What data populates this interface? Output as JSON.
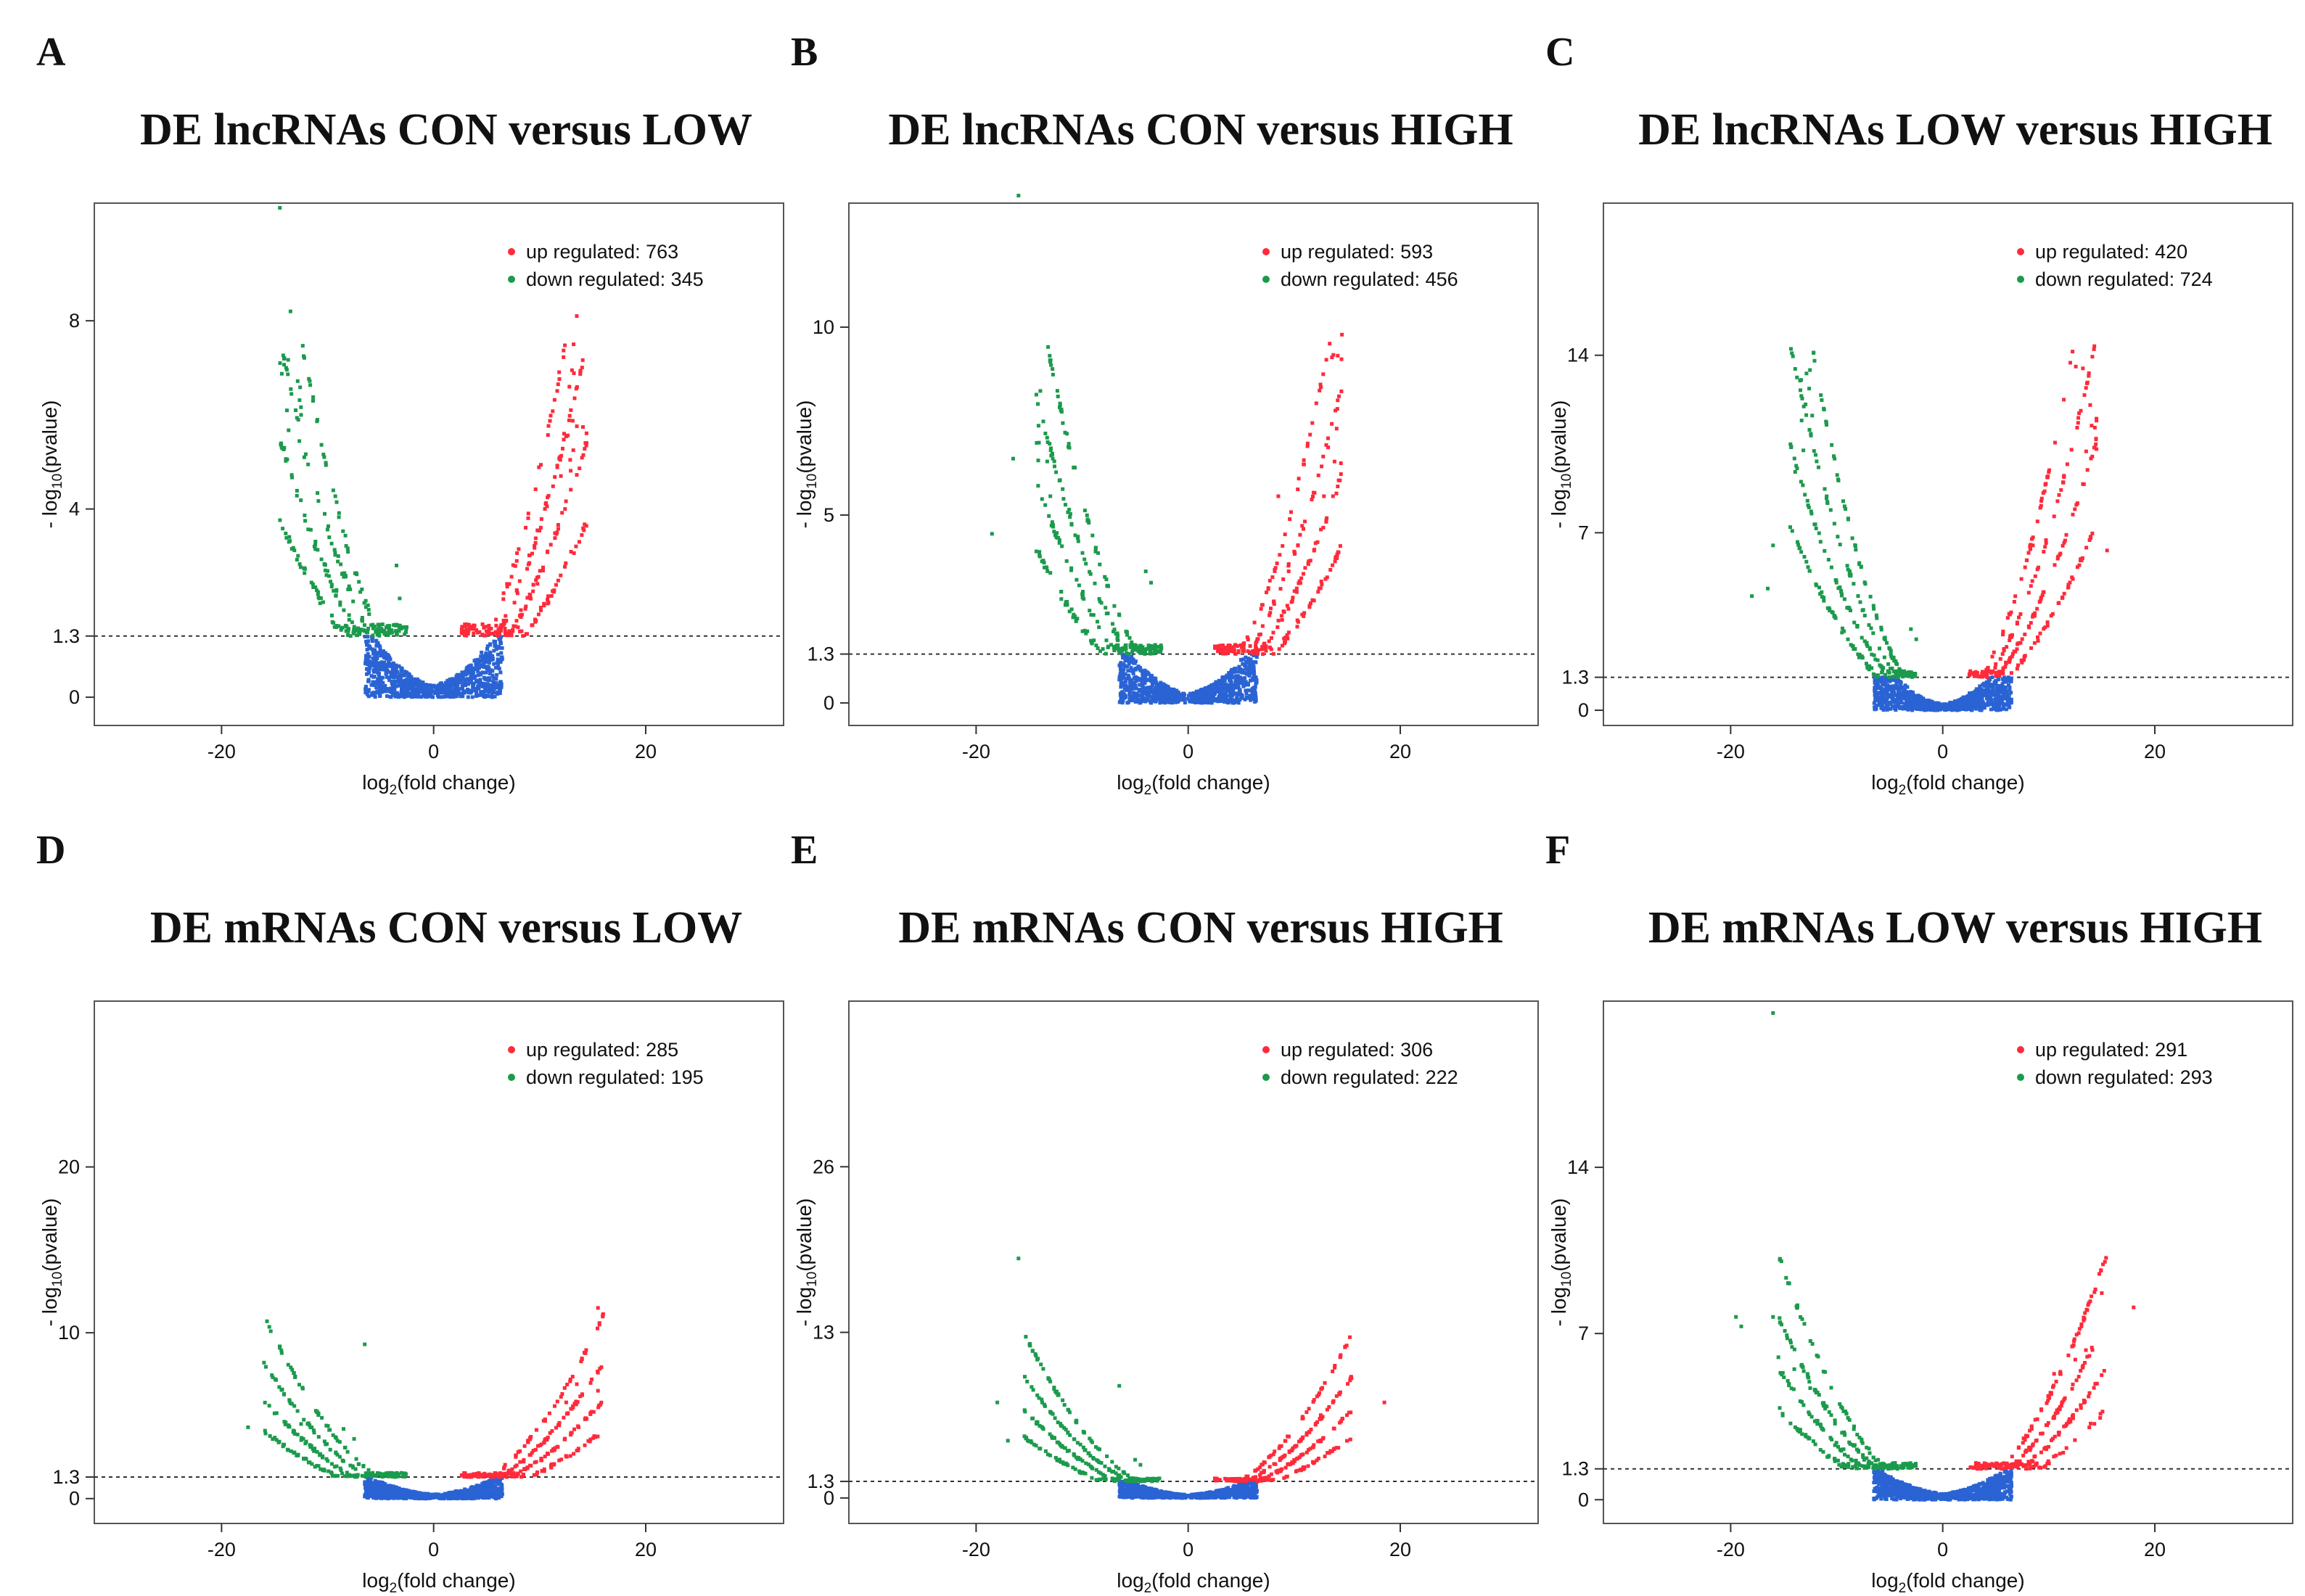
{
  "chart_data": [
    {
      "type": "scatter",
      "panel": "A",
      "title": "DE lncRNAs CON versus LOW",
      "xlabel": "log2(fold change)",
      "ylabel": "- log10(pvalue)",
      "xlim": [
        -32,
        33
      ],
      "ylim": [
        -0.6,
        10.5
      ],
      "xticks": [
        -20,
        0,
        20
      ],
      "yticks": [
        0,
        1.3,
        4,
        8
      ],
      "threshold": 1.3,
      "legend": {
        "position": "top-right",
        "entries": [
          {
            "label": "up regulated: 763",
            "color": "#ff2a3a"
          },
          {
            "label": "down regulated: 345",
            "color": "#1c9a4c"
          }
        ]
      },
      "up_count": 763,
      "down_count": 345,
      "curve_k": 0.018,
      "max_abs_x": 14.5,
      "outliers": [
        [
          -14.5,
          10.4
        ],
        [
          -13.5,
          8.2
        ],
        [
          -12.5,
          6.0
        ],
        [
          -12.2,
          5.1
        ],
        [
          -3.5,
          2.8
        ],
        [
          -3.2,
          2.1
        ],
        [
          13.5,
          8.1
        ],
        [
          13.2,
          7.5
        ],
        [
          12.8,
          6.6
        ],
        [
          12.3,
          5.6
        ],
        [
          12.0,
          4.7
        ]
      ]
    },
    {
      "type": "scatter",
      "panel": "B",
      "title": "DE lncRNAs CON versus HIGH",
      "xlabel": "log2(fold change)",
      "ylabel": "- log10(pvalue)",
      "xlim": [
        -32,
        33
      ],
      "ylim": [
        -0.6,
        13.3
      ],
      "xticks": [
        -20,
        0,
        20
      ],
      "yticks": [
        0,
        1.3,
        5,
        10
      ],
      "threshold": 1.3,
      "legend": {
        "position": "top-right",
        "entries": [
          {
            "label": "up regulated: 593",
            "color": "#ff2a3a"
          },
          {
            "label": "down regulated: 456",
            "color": "#1c9a4c"
          }
        ]
      },
      "up_count": 593,
      "down_count": 456,
      "curve_k": 0.02,
      "max_abs_x": 14.5,
      "outliers": [
        [
          -16,
          13.5
        ],
        [
          -16.5,
          6.5
        ],
        [
          -18.5,
          4.5
        ],
        [
          -13,
          5.5
        ],
        [
          -4,
          3.5
        ],
        [
          -3.5,
          3.2
        ],
        [
          14.5,
          9.8
        ],
        [
          14,
          7.3
        ],
        [
          13.2,
          6.8
        ],
        [
          12.8,
          5.5
        ],
        [
          8.5,
          5.5
        ]
      ]
    },
    {
      "type": "scatter",
      "panel": "C",
      "title": "DE lncRNAs LOW versus HIGH",
      "xlabel": "log2(fold change)",
      "ylabel": "- log10(pvalue)",
      "xlim": [
        -32,
        33
      ],
      "ylim": [
        -0.6,
        20
      ],
      "xticks": [
        -20,
        0,
        20
      ],
      "yticks": [
        0,
        1.3,
        7,
        14
      ],
      "threshold": 1.3,
      "legend": {
        "position": "top-right",
        "entries": [
          {
            "label": "up regulated: 420",
            "color": "#ff2a3a"
          },
          {
            "label": "down regulated: 724",
            "color": "#1c9a4c"
          }
        ]
      },
      "up_count": 420,
      "down_count": 724,
      "curve_k": 0.035,
      "max_abs_x": 14.5,
      "outliers": [
        [
          14.5,
          11.5
        ],
        [
          14.5,
          10.3
        ],
        [
          15.5,
          6.3
        ],
        [
          8.5,
          6.5
        ],
        [
          -13,
          8.5
        ],
        [
          -16,
          6.5
        ],
        [
          -18,
          4.5
        ],
        [
          -16.5,
          4.8
        ],
        [
          -3,
          3.2
        ],
        [
          -2.5,
          2.8
        ]
      ]
    },
    {
      "type": "scatter",
      "panel": "D",
      "title": "DE mRNAs CON versus LOW",
      "xlabel": "log2(fold change)",
      "ylabel": "- log10(pvalue)",
      "xlim": [
        -32,
        33
      ],
      "ylim": [
        -1.5,
        30
      ],
      "xticks": [
        -20,
        0,
        20
      ],
      "yticks": [
        0,
        1.3,
        10,
        20
      ],
      "threshold": 1.3,
      "legend": {
        "position": "top-right",
        "entries": [
          {
            "label": "up regulated: 285",
            "color": "#ff2a3a"
          },
          {
            "label": "down regulated: 195",
            "color": "#1c9a4c"
          }
        ]
      },
      "up_count": 285,
      "down_count": 195,
      "curve_k": 0.016,
      "max_abs_x": 16,
      "outliers": [
        [
          -6.5,
          9.3
        ],
        [
          -17.5,
          4.3
        ],
        [
          -15.5,
          5.6
        ],
        [
          -12.5,
          4.5
        ],
        [
          -8.5,
          4.2
        ],
        [
          -7.5,
          3.6
        ],
        [
          15.5,
          11.5
        ],
        [
          14,
          8.4
        ],
        [
          13.5,
          6.9
        ],
        [
          15.5,
          6.5
        ],
        [
          12.5,
          5.8
        ]
      ]
    },
    {
      "type": "scatter",
      "panel": "E",
      "title": "DE mRNAs CON versus HIGH",
      "xlabel": "log2(fold change)",
      "ylabel": "- log10(pvalue)",
      "xlim": [
        -32,
        33
      ],
      "ylim": [
        -2,
        39
      ],
      "xticks": [
        -20,
        0,
        20
      ],
      "yticks": [
        0,
        1.3,
        13,
        26
      ],
      "threshold": 1.3,
      "legend": {
        "position": "top-right",
        "entries": [
          {
            "label": "up regulated: 306",
            "color": "#ff2a3a"
          },
          {
            "label": "down regulated: 222",
            "color": "#1c9a4c"
          }
        ]
      },
      "up_count": 306,
      "down_count": 222,
      "curve_k": 0.02,
      "max_abs_x": 15.5,
      "outliers": [
        [
          -16,
          18.8
        ],
        [
          -6.5,
          8.8
        ],
        [
          -18,
          7.5
        ],
        [
          -13.5,
          7.2
        ],
        [
          -17,
          4.5
        ],
        [
          18.5,
          7.5
        ],
        [
          14,
          8
        ],
        [
          12.5,
          6.5
        ],
        [
          -5,
          3
        ],
        [
          -4.5,
          2.6
        ]
      ]
    },
    {
      "type": "scatter",
      "panel": "F",
      "title": "DE mRNAs LOW versus HIGH",
      "xlabel": "log2(fold change)",
      "ylabel": "- log10(pvalue)",
      "xlim": [
        -32,
        33
      ],
      "ylim": [
        -1,
        21
      ],
      "xticks": [
        -20,
        0,
        20
      ],
      "yticks": [
        0,
        1.3,
        7,
        14
      ],
      "threshold": 1.3,
      "legend": {
        "position": "top-right",
        "entries": [
          {
            "label": "up regulated: 291",
            "color": "#ff2a3a"
          },
          {
            "label": "down regulated: 293",
            "color": "#1c9a4c"
          }
        ]
      },
      "up_count": 291,
      "down_count": 293,
      "curve_k": 0.016,
      "max_abs_x": 15.5,
      "outliers": [
        [
          -16,
          20.5
        ],
        [
          -19.5,
          7.7
        ],
        [
          -19,
          7.3
        ],
        [
          -16,
          7.7
        ],
        [
          -15.5,
          6
        ],
        [
          -14,
          5.5
        ],
        [
          -12.5,
          4.7
        ],
        [
          15,
          8.7
        ],
        [
          18,
          8.1
        ],
        [
          12.5,
          5.9
        ],
        [
          13.5,
          6.3
        ],
        [
          10.5,
          5.3
        ]
      ]
    }
  ]
}
